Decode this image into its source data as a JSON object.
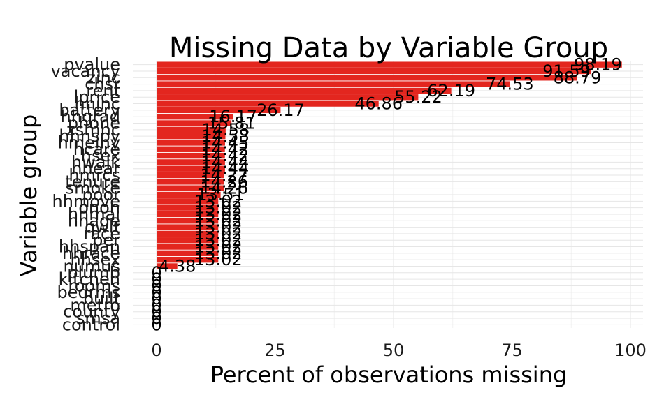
{
  "chart_data": {
    "type": "bar",
    "orientation": "horizontal",
    "title": "Missing Data by Variable Group",
    "xlabel": "Percent of observations missing",
    "ylabel": "Variable group",
    "xlim": [
      0,
      100
    ],
    "xticks": [
      0,
      25,
      50,
      75,
      100
    ],
    "bar_color": "#e3261f",
    "grid": true,
    "legend": "none",
    "categories": [
      "pvalue",
      "vacancy",
      "zinc",
      "chsr",
      "rent",
      "lprice",
      "hhinc",
      "battery",
      "hhgrad",
      "phone",
      "zsmhc",
      "hhnspy",
      "hmeinv",
      "hcare",
      "hsex",
      "hwalk",
      "hhear",
      "hmrcs",
      "tenure",
      "smoke",
      "poor",
      "hhmove",
      "onon",
      "hhmai",
      "hhage",
      "qwlt",
      "race",
      "per",
      "hhspan",
      "hhrace",
      "hhsex",
      "numus",
      "plumb",
      "kitchen",
      "rooms",
      "bedrms",
      "built",
      "metro",
      "county",
      "smsa",
      "control"
    ],
    "values": [
      98.19,
      91.59,
      88.79,
      74.53,
      62.19,
      55.22,
      46.86,
      26.17,
      16.17,
      15.81,
      14.58,
      14.53,
      14.45,
      14.42,
      14.42,
      14.44,
      14.44,
      14.27,
      14.26,
      14.26,
      13.51,
      13.02,
      13.02,
      13.02,
      13.02,
      13.02,
      13.02,
      13.02,
      13.02,
      13.02,
      13.02,
      4.38,
      0,
      0,
      0,
      0,
      0,
      0,
      0,
      0,
      0
    ],
    "value_labels": [
      "98.19",
      "91.59",
      "88.79",
      "74.53",
      "62.19",
      "55.22",
      "46.86",
      "26.17",
      "16.17",
      "15.81",
      "14.58",
      "14.53",
      "14.45",
      "14.42",
      "14.42",
      "14.44",
      "14.44",
      "14.27",
      "14.26",
      "14.26",
      "13.51",
      "13.02",
      "13.02",
      "13.02",
      "13.02",
      "13.02",
      "13.02",
      "13.02",
      "13.02",
      "13.02",
      "13.02",
      "4.38",
      "0",
      "0",
      "0",
      "0",
      "0",
      "0",
      "0",
      "0",
      "0"
    ]
  }
}
